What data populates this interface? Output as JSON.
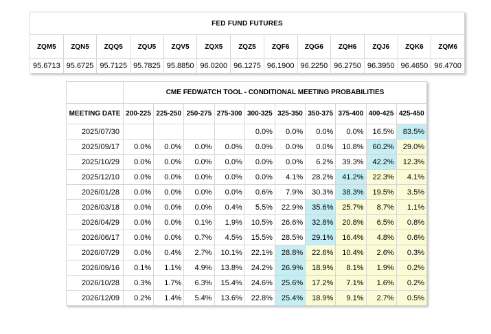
{
  "futures": {
    "title": "FED FUND FUTURES",
    "contracts": [
      {
        "code": "ZQM5",
        "price": "95.6713"
      },
      {
        "code": "ZQN5",
        "price": "95.6725"
      },
      {
        "code": "ZQQ5",
        "price": "95.7125"
      },
      {
        "code": "ZQU5",
        "price": "95.7825"
      },
      {
        "code": "ZQV5",
        "price": "95.8850"
      },
      {
        "code": "ZQX5",
        "price": "96.0200"
      },
      {
        "code": "ZQZ5",
        "price": "96.1275"
      },
      {
        "code": "ZQF6",
        "price": "96.1900"
      },
      {
        "code": "ZQG6",
        "price": "96.2250"
      },
      {
        "code": "ZQH6",
        "price": "96.2750"
      },
      {
        "code": "ZQJ6",
        "price": "96.3950"
      },
      {
        "code": "ZQK6",
        "price": "96.4650"
      },
      {
        "code": "ZQM6",
        "price": "96.4700"
      }
    ]
  },
  "fedwatch": {
    "title": "CME FEDWATCH TOOL - CONDITIONAL MEETING PROBABILITIES",
    "date_header": "MEETING DATE",
    "ranges": [
      "200-225",
      "225-250",
      "250-275",
      "275-300",
      "300-325",
      "325-350",
      "350-375",
      "375-400",
      "400-425",
      "425-450"
    ],
    "colors": {
      "highlight": "#c4eef4",
      "tinted": "#fbfbd5"
    },
    "rows": [
      {
        "date": "2025/07/30",
        "values": [
          "",
          "",
          "",
          "",
          "0.0%",
          "0.0%",
          "0.0%",
          "0.0%",
          "16.5%",
          "83.5%"
        ],
        "max": 9
      },
      {
        "date": "2025/09/17",
        "values": [
          "0.0%",
          "0.0%",
          "0.0%",
          "0.0%",
          "0.0%",
          "0.0%",
          "0.0%",
          "10.8%",
          "60.2%",
          "29.0%"
        ],
        "max": 8
      },
      {
        "date": "2025/10/29",
        "values": [
          "0.0%",
          "0.0%",
          "0.0%",
          "0.0%",
          "0.0%",
          "0.0%",
          "6.2%",
          "39.3%",
          "42.2%",
          "12.3%"
        ],
        "max": 8
      },
      {
        "date": "2025/12/10",
        "values": [
          "0.0%",
          "0.0%",
          "0.0%",
          "0.0%",
          "0.0%",
          "4.1%",
          "28.2%",
          "41.2%",
          "22.3%",
          "4.1%"
        ],
        "max": 7
      },
      {
        "date": "2026/01/28",
        "values": [
          "0.0%",
          "0.0%",
          "0.0%",
          "0.0%",
          "0.6%",
          "7.9%",
          "30.3%",
          "38.3%",
          "19.5%",
          "3.5%"
        ],
        "max": 7
      },
      {
        "date": "2026/03/18",
        "values": [
          "0.0%",
          "0.0%",
          "0.0%",
          "0.4%",
          "5.5%",
          "22.9%",
          "35.6%",
          "25.7%",
          "8.7%",
          "1.1%"
        ],
        "max": 6
      },
      {
        "date": "2026/04/29",
        "values": [
          "0.0%",
          "0.0%",
          "0.1%",
          "1.9%",
          "10.5%",
          "26.6%",
          "32.8%",
          "20.8%",
          "6.5%",
          "0.8%"
        ],
        "max": 6
      },
      {
        "date": "2026/06/17",
        "values": [
          "0.0%",
          "0.0%",
          "0.7%",
          "4.5%",
          "15.5%",
          "28.5%",
          "29.1%",
          "16.4%",
          "4.8%",
          "0.6%"
        ],
        "max": 6
      },
      {
        "date": "2026/07/29",
        "values": [
          "0.0%",
          "0.4%",
          "2.7%",
          "10.1%",
          "22.1%",
          "28.8%",
          "22.6%",
          "10.4%",
          "2.6%",
          "0.3%"
        ],
        "max": 5
      },
      {
        "date": "2026/09/16",
        "values": [
          "0.1%",
          "1.1%",
          "4.9%",
          "13.8%",
          "24.2%",
          "26.9%",
          "18.9%",
          "8.1%",
          "1.9%",
          "0.2%"
        ],
        "max": 5
      },
      {
        "date": "2026/10/28",
        "values": [
          "0.3%",
          "1.7%",
          "6.3%",
          "15.4%",
          "24.6%",
          "25.6%",
          "17.2%",
          "7.1%",
          "1.6%",
          "0.2%"
        ],
        "max": 5
      },
      {
        "date": "2026/12/09",
        "values": [
          "0.2%",
          "1.4%",
          "5.4%",
          "13.6%",
          "22.8%",
          "25.4%",
          "18.9%",
          "9.1%",
          "2.7%",
          "0.5%"
        ],
        "max": 5
      }
    ]
  }
}
